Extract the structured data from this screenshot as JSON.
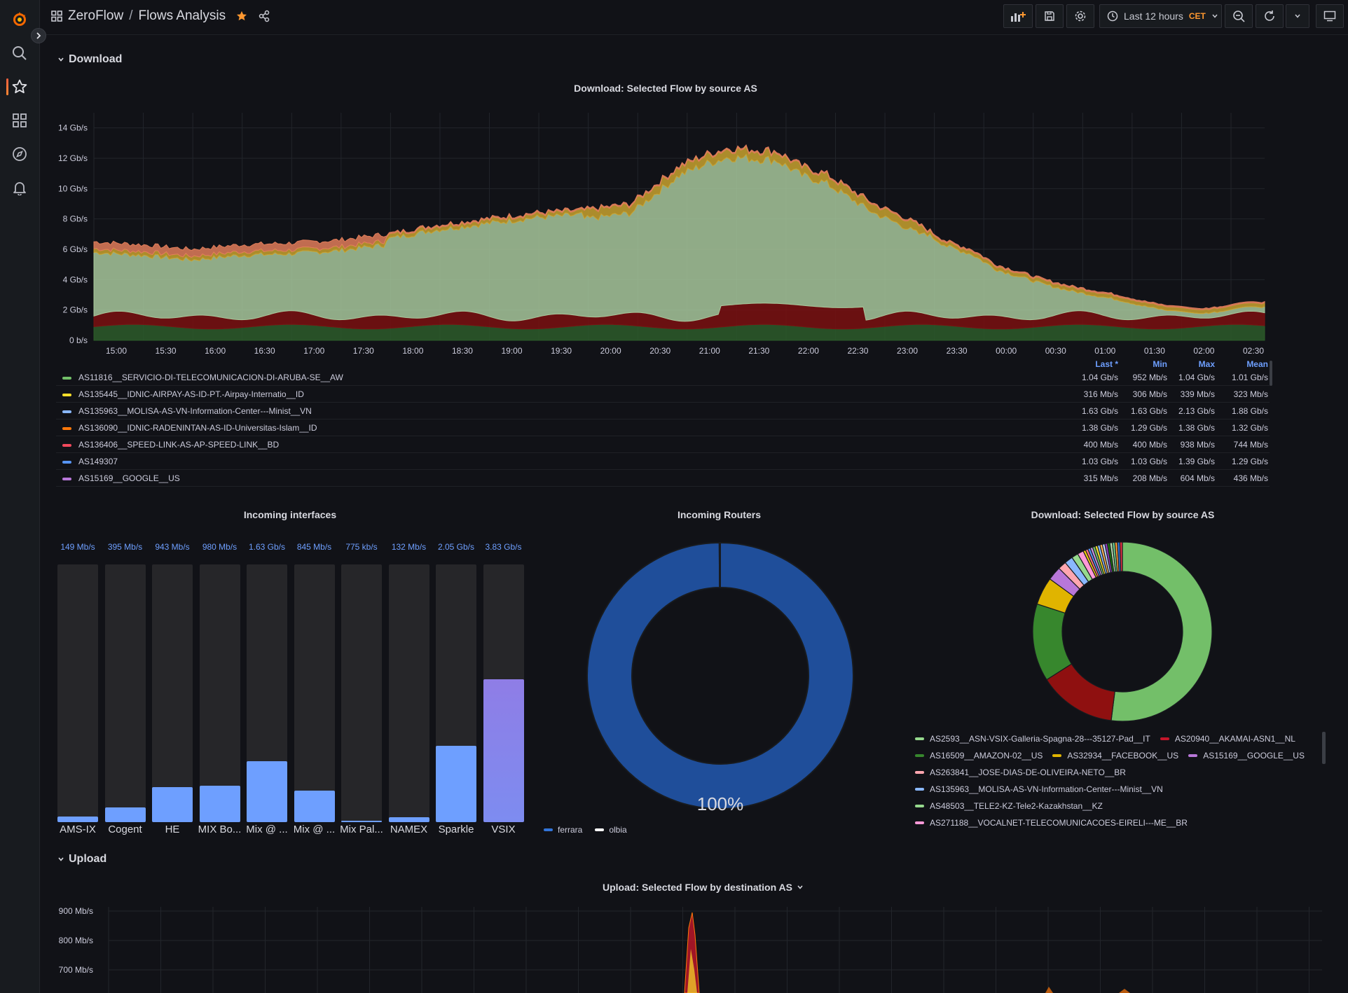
{
  "header": {
    "folder": "ZeroFlow",
    "title": "Flows Analysis",
    "time_range": "Last 12 hours",
    "timezone": "CET"
  },
  "icons": {
    "logo": "grafana-logo",
    "search": "search-icon",
    "starred": "star-icon",
    "dashboards": "apps-icon",
    "explore": "compass-icon",
    "alerting": "bell-icon",
    "add_panel": "add-panel-icon",
    "save": "save-icon",
    "settings": "gear-icon",
    "clock": "clock-icon",
    "zoom_out": "zoom-out-icon",
    "refresh": "refresh-icon",
    "tv": "monitor-icon"
  },
  "colors": {
    "accent_orange": "#ff9830",
    "link_blue": "#6e9fff",
    "panel_bg": "#181b1f",
    "page_bg": "#111217"
  },
  "rows": {
    "download": "Download",
    "upload": "Upload"
  },
  "panels": {
    "timeseries_title": "Download: Selected Flow by source AS",
    "interfaces_title": "Incoming interfaces",
    "routers_title": "Incoming Routers",
    "pie_title": "Download: Selected Flow by source AS",
    "upload_title": "Upload: Selected Flow by destination AS"
  },
  "legend_table": {
    "headers": {
      "last": "Last *",
      "min": "Min",
      "max": "Max",
      "mean": "Mean"
    },
    "rows": [
      {
        "name": "AS11816__SERVICIO-DI-TELECOMUNICACION-DI-ARUBA-SE__AW",
        "color": "#73bf69",
        "last": "1.04 Gb/s",
        "min": "952 Mb/s",
        "max": "1.04 Gb/s",
        "mean": "1.01 Gb/s"
      },
      {
        "name": "AS135445__IDNIC-AIRPAY-AS-ID-PT.-Airpay-Internatio__ID",
        "color": "#fade2a",
        "last": "316 Mb/s",
        "min": "306 Mb/s",
        "max": "339 Mb/s",
        "mean": "323 Mb/s"
      },
      {
        "name": "AS135963__MOLISA-AS-VN-Information-Center---Minist__VN",
        "color": "#8ab8ff",
        "last": "1.63 Gb/s",
        "min": "1.63 Gb/s",
        "max": "2.13 Gb/s",
        "mean": "1.88 Gb/s"
      },
      {
        "name": "AS136090__IDNIC-RADENINTAN-AS-ID-Universitas-Islam__ID",
        "color": "#ff780a",
        "last": "1.38 Gb/s",
        "min": "1.29 Gb/s",
        "max": "1.38 Gb/s",
        "mean": "1.32 Gb/s"
      },
      {
        "name": "AS136406__SPEED-LINK-AS-AP-SPEED-LINK__BD",
        "color": "#f2495c",
        "last": "400 Mb/s",
        "min": "400 Mb/s",
        "max": "938 Mb/s",
        "mean": "744 Mb/s"
      },
      {
        "name": "AS149307",
        "color": "#5794f2",
        "last": "1.03 Gb/s",
        "min": "1.03 Gb/s",
        "max": "1.39 Gb/s",
        "mean": "1.29 Gb/s"
      },
      {
        "name": "AS15169__GOOGLE__US",
        "color": "#b877d9",
        "last": "315 Mb/s",
        "min": "208 Mb/s",
        "max": "604 Mb/s",
        "mean": "436 Mb/s"
      }
    ]
  },
  "chart_data": [
    {
      "type": "area",
      "title": "Download: Selected Flow by source AS",
      "x_ticks": [
        "15:00",
        "15:30",
        "16:00",
        "16:30",
        "17:00",
        "17:30",
        "18:00",
        "18:30",
        "19:00",
        "19:30",
        "20:00",
        "20:30",
        "21:00",
        "21:30",
        "22:00",
        "22:30",
        "23:00",
        "23:30",
        "00:00",
        "00:30",
        "01:00",
        "01:30",
        "02:00",
        "02:30"
      ],
      "y_ticks": [
        "0 b/s",
        "2 Gb/s",
        "4 Gb/s",
        "6 Gb/s",
        "8 Gb/s",
        "10 Gb/s",
        "12 Gb/s",
        "14 Gb/s"
      ],
      "ylim": [
        0,
        15
      ],
      "unit": "Gb/s",
      "stacked": true,
      "total_profile_x": [
        0,
        1,
        2,
        3,
        4,
        5,
        6,
        7,
        8,
        9,
        10,
        11,
        12,
        12.5,
        13,
        13.5,
        14,
        14.5,
        15,
        15.5,
        16,
        16.5,
        17,
        17.5,
        18,
        18.5,
        19,
        19.5,
        20,
        20.5,
        21,
        21.5,
        22,
        22.5,
        23,
        23.5,
        24
      ],
      "total_profile_y": [
        6.5,
        6.3,
        6.0,
        6.3,
        6.4,
        6.6,
        7.0,
        7.6,
        8.0,
        8.4,
        8.6,
        9.0,
        11.5,
        12.2,
        12.7,
        12.6,
        12.5,
        11.5,
        11.0,
        10.0,
        9.0,
        8.3,
        7.5,
        6.5,
        6.0,
        5.0,
        4.5,
        4.0,
        3.6,
        3.3,
        3.0,
        2.6,
        2.3,
        2.0,
        2.2,
        2.4,
        2.5
      ],
      "series": [
        {
          "name": "AS11816__SERVICIO-DI-TELECOMUNICACION-DI-ARUBA-SE__AW",
          "color": "#73bf69"
        },
        {
          "name": "AS135445__IDNIC-AIRPAY-AS-ID-PT.-Airpay-Internatio__ID",
          "color": "#fade2a"
        },
        {
          "name": "AS135963__MOLISA-AS-VN-Information-Center---Minist__VN",
          "color": "#8ab8ff"
        },
        {
          "name": "AS136090__IDNIC-RADENINTAN-AS-ID-Universitas-Islam__ID",
          "color": "#ff780a"
        },
        {
          "name": "AS136406__SPEED-LINK-AS-AP-SPEED-LINK__BD",
          "color": "#f2495c"
        },
        {
          "name": "AS149307",
          "color": "#5794f2"
        },
        {
          "name": "AS15169__GOOGLE__US",
          "color": "#b877d9"
        }
      ]
    },
    {
      "type": "bar",
      "title": "Incoming interfaces",
      "categories": [
        "AMS-IX",
        "Cogent",
        "HE",
        "MIX Bo...",
        "Mix @ ...",
        "Mix @ ...",
        "Mix Pal...",
        "NAMEX",
        "Sparkle",
        "VSIX"
      ],
      "value_labels": [
        "149 Mb/s",
        "395 Mb/s",
        "943 Mb/s",
        "980 Mb/s",
        "1.63 Gb/s",
        "845 Mb/s",
        "775 kb/s",
        "132 Mb/s",
        "2.05 Gb/s",
        "3.83 Gb/s"
      ],
      "values": [
        0.149,
        0.395,
        0.943,
        0.98,
        1.63,
        0.845,
        0.000775,
        0.132,
        2.05,
        3.83
      ],
      "unit": "Gb/s",
      "ylim": [
        0,
        6.9
      ]
    },
    {
      "type": "pie",
      "donut": true,
      "title": "Incoming Routers",
      "center_label": "100%",
      "labels": [
        "ferrara",
        "olbia"
      ],
      "colors": [
        "#3274d9",
        "#ffffff"
      ],
      "values": [
        99.9,
        0.1
      ]
    },
    {
      "type": "pie",
      "donut": true,
      "title": "Download: Selected Flow by source AS",
      "labels": [
        "AS2593__ASN-VSIX-Galleria-Spagna-28---35127-Pad__IT",
        "AS20940__AKAMAI-ASN1__NL",
        "AS16509__AMAZON-02__US",
        "AS32934__FACEBOOK__US",
        "AS15169__GOOGLE__US",
        "AS263841__JOSE-DIAS-DE-OLIVEIRA-NETO__BR",
        "AS135963__MOLISA-AS-VN-Information-Center---Minist__VN",
        "AS48503__TELE2-KZ-Tele2-Kazakhstan__KZ",
        "AS271188__VOCALNET-TELECOMUNICACOES-EIRELI---ME__BR"
      ],
      "colors": [
        "#73bf69",
        "#8f1010",
        "#37872d",
        "#e0b400",
        "#b877d9",
        "#ffa6b0",
        "#8ab8ff",
        "#96d98d",
        "#ff99d8"
      ],
      "values": [
        52,
        14,
        14,
        5,
        2.5,
        1.5,
        1.5,
        1.2,
        1.1
      ]
    },
    {
      "type": "area",
      "title": "Upload: Selected Flow by destination AS",
      "y_ticks": [
        "700 Mb/s",
        "800 Mb/s",
        "900 Mb/s"
      ],
      "unit": "Mb/s"
    }
  ]
}
